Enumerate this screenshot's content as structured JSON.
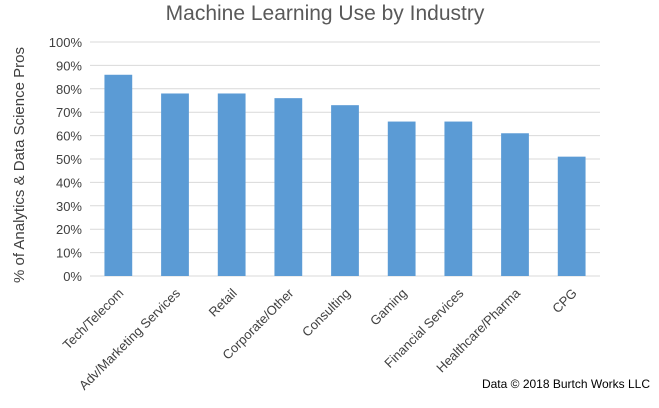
{
  "chart_data": {
    "type": "bar",
    "title": "Machine Learning Use by Industry",
    "xlabel": "",
    "ylabel": "% of Analytics & Data Science Pros",
    "categories": [
      "Tech/Telecom",
      "Adv/Marketing Services",
      "Retail",
      "Corporate/Other",
      "Consulting",
      "Gaming",
      "Financial Services",
      "Healthcare/Pharma",
      "CPG"
    ],
    "values": [
      86,
      78,
      78,
      76,
      73,
      66,
      66,
      61,
      51
    ],
    "ylim": [
      0,
      100
    ],
    "yticks": [
      0,
      10,
      20,
      30,
      40,
      50,
      60,
      70,
      80,
      90,
      100
    ],
    "ytick_labels": [
      "0%",
      "10%",
      "20%",
      "30%",
      "40%",
      "50%",
      "60%",
      "70%",
      "80%",
      "90%",
      "100%"
    ],
    "grid": true,
    "bar_color": "#5b9bd5",
    "grid_color": "#d9d9d9",
    "source_note": "Data © 2018 Burtch Works LLC"
  }
}
